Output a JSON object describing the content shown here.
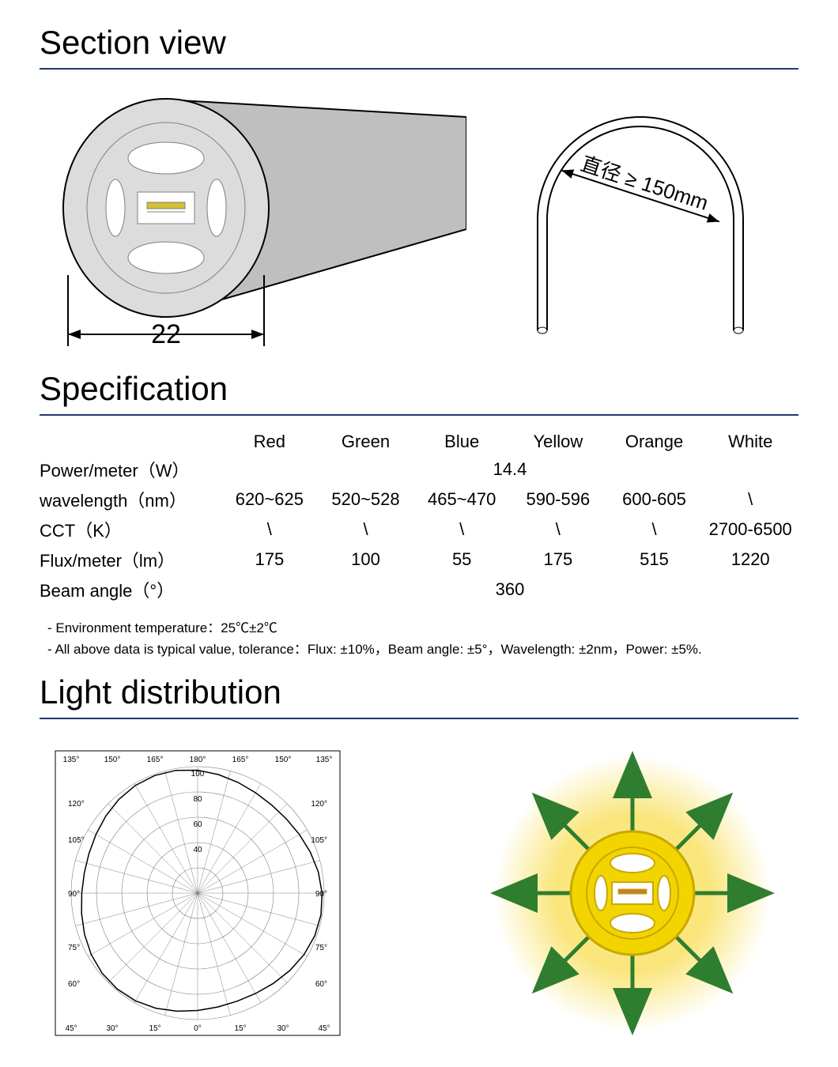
{
  "sections": {
    "section_view": "Section view",
    "specification": "Specification",
    "light_distribution": "Light distribution"
  },
  "colors": {
    "hr": "#1f3a6e",
    "body_fill": "#bfbfbf",
    "body_stroke": "#000000",
    "face_fill": "#dcdcdc",
    "inner_stroke": "#808080",
    "led_yellow": "#d2c030",
    "polar_grid": "#808080",
    "polar_curve": "#000000",
    "sun_glow": "#f9e26a",
    "sun_body": "#f2d400",
    "sun_border": "#c9a800",
    "arrow_green": "#2f7d2f",
    "text": "#000000"
  },
  "section_view": {
    "diameter_label": "22",
    "bend_label": "直径 ≥ 150mm"
  },
  "spec": {
    "headers": [
      "Red",
      "Green",
      "Blue",
      "Yellow",
      "Orange",
      "White"
    ],
    "rows": [
      {
        "label": "Power/meter（W）",
        "span": "14.4"
      },
      {
        "label": "wavelength（nm）",
        "cells": [
          "620~625",
          "520~528",
          "465~470",
          "590-596",
          "600-605",
          "\\"
        ]
      },
      {
        "label": "CCT（K）",
        "cells": [
          "\\",
          "\\",
          "\\",
          "\\",
          "\\",
          "2700-6500"
        ]
      },
      {
        "label": "Flux/meter（lm）",
        "cells": [
          "175",
          "100",
          "55",
          "175",
          "515",
          "1220"
        ]
      },
      {
        "label": "Beam angle（°）",
        "span": "360"
      }
    ],
    "notes": [
      "- Environment temperature：25℃±2℃",
      "- All above data is typical value, tolerance：Flux: ±10%，Beam angle: ±5°，Wavelength: ±2nm，Power: ±5%."
    ]
  },
  "polar": {
    "angle_labels_top": [
      "135°",
      "150°",
      "165°",
      "180°",
      "165°",
      "150°",
      "135°"
    ],
    "angle_labels_bottom": [
      "45°",
      "30°",
      "15°",
      "0°",
      "15°",
      "30°",
      "45°"
    ],
    "angle_labels_left": [
      "120°",
      "105°",
      "90°",
      "75°",
      "60°"
    ],
    "angle_labels_right": [
      "120°",
      "105°",
      "90°",
      "75°",
      "60°"
    ],
    "radial_labels": [
      "100",
      "80",
      "60",
      "40"
    ],
    "rings": [
      20,
      40,
      60,
      80,
      100
    ],
    "spokes_deg_step": 15,
    "curve_radius_mean": 95,
    "curve_radius_var": 4,
    "label_fontsize": 10
  },
  "sun_diagram": {
    "arrows": 8
  }
}
